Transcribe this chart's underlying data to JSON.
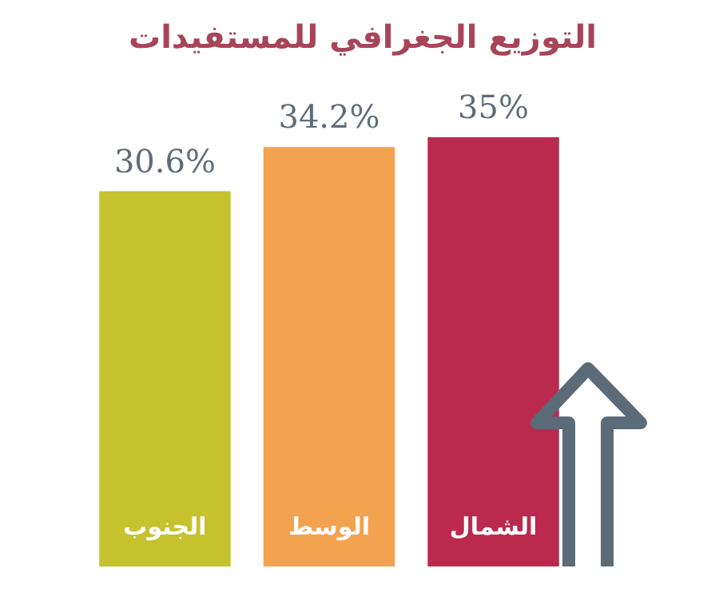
{
  "chart_data": {
    "type": "bar",
    "title": "التوزيع الجغرافي للمستفيدات",
    "categories": [
      "الجنوب",
      "الوسط",
      "الشمال"
    ],
    "values": [
      30.6,
      34.2,
      35
    ],
    "colors": [
      "#c5c22e",
      "#f3a250",
      "#bb2a4e"
    ],
    "value_labels": [
      "30.6%",
      "34.2%",
      "35%"
    ]
  }
}
